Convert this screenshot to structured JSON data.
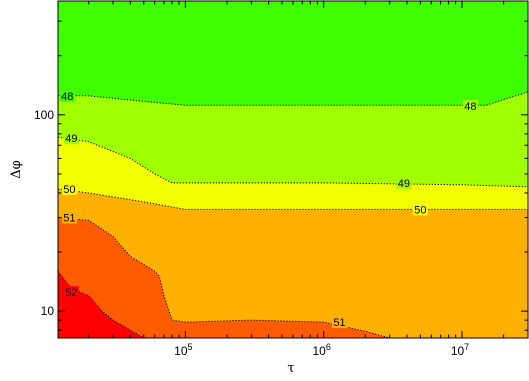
{
  "chart_data": {
    "type": "contour",
    "title": "",
    "xlabel": "τ",
    "ylabel": "Δφ",
    "x_scale": "log",
    "y_scale": "log",
    "xlim": [
      12000,
      30000000
    ],
    "ylim": [
      7.3,
      380
    ],
    "x_ticks": [
      {
        "value": 100000,
        "base": "10",
        "exp": "5"
      },
      {
        "value": 1000000,
        "base": "10",
        "exp": "6"
      },
      {
        "value": 10000000,
        "base": "10",
        "exp": "7"
      }
    ],
    "y_ticks": [
      {
        "value": 10,
        "label": "10"
      },
      {
        "value": 100,
        "label": "100"
      }
    ],
    "levels": [
      {
        "level": "<48",
        "color": "#40ff00"
      },
      {
        "level": "48-49",
        "color": "#a0ff00"
      },
      {
        "level": "49-50",
        "color": "#f2ff00"
      },
      {
        "level": "50-51",
        "color": "#ffb000"
      },
      {
        "level": "51-52",
        "color": "#ff5c00"
      },
      {
        "level": ">52",
        "color": "#ff0000"
      }
    ],
    "contours": [
      {
        "level": "48",
        "points": [
          [
            12000,
            125
          ],
          [
            20000,
            125
          ],
          [
            50000,
            117
          ],
          [
            100000,
            112
          ],
          [
            1000000,
            112
          ],
          [
            10000000,
            112
          ],
          [
            15000000,
            112
          ],
          [
            30000000,
            131
          ]
        ]
      },
      {
        "level": "49",
        "points": [
          [
            12000,
            77
          ],
          [
            20000,
            73
          ],
          [
            40000,
            60
          ],
          [
            60000,
            50
          ],
          [
            80000,
            45
          ],
          [
            100000,
            45
          ],
          [
            1000000,
            45
          ],
          [
            10000000,
            44
          ],
          [
            30000000,
            43
          ]
        ]
      },
      {
        "level": "50",
        "points": [
          [
            12000,
            42
          ],
          [
            20000,
            40
          ],
          [
            50000,
            36
          ],
          [
            100000,
            33
          ],
          [
            1000000,
            33
          ],
          [
            10000000,
            33
          ],
          [
            30000000,
            33
          ]
        ]
      },
      {
        "level": "51",
        "points": [
          [
            12000,
            30
          ],
          [
            20000,
            29
          ],
          [
            30000,
            24
          ],
          [
            40000,
            19
          ],
          [
            60000,
            16
          ],
          [
            65000,
            15
          ],
          [
            70000,
            12
          ],
          [
            80000,
            9
          ],
          [
            100000,
            8.8
          ],
          [
            300000,
            9
          ],
          [
            1000000,
            8.8
          ],
          [
            2000000,
            7.9
          ],
          [
            3000000,
            7.3
          ]
        ]
      },
      {
        "level": "52",
        "points": [
          [
            12000,
            16
          ],
          [
            15000,
            13
          ],
          [
            20000,
            12
          ],
          [
            25000,
            10
          ],
          [
            30000,
            9
          ],
          [
            40000,
            8
          ],
          [
            50000,
            7.3
          ]
        ]
      }
    ],
    "contour_labels": [
      {
        "text": "48",
        "x": 14000,
        "y": 125
      },
      {
        "text": "48",
        "x": 11500000,
        "y": 111
      },
      {
        "text": "49",
        "x": 15000,
        "y": 76
      },
      {
        "text": "49",
        "x": 3800000,
        "y": 45
      },
      {
        "text": "50",
        "x": 14500,
        "y": 42
      },
      {
        "text": "50",
        "x": 5000000,
        "y": 33
      },
      {
        "text": "51",
        "x": 14500,
        "y": 30
      },
      {
        "text": "51",
        "x": 1300000,
        "y": 8.8
      },
      {
        "text": "52",
        "x": 15000,
        "y": 12.5
      }
    ]
  }
}
